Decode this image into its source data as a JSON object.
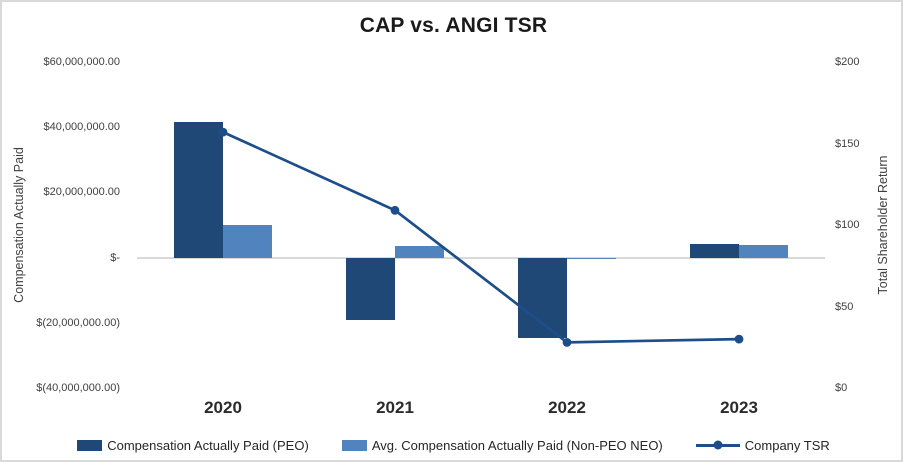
{
  "chart_data": {
    "type": "combo-bar-line",
    "title": "CAP vs. ANGI TSR",
    "categories": [
      "2020",
      "2021",
      "2022",
      "2023"
    ],
    "series": [
      {
        "name": "Compensation Actually Paid (PEO)",
        "chart_type": "bar",
        "axis": "left",
        "color": "#1F4876",
        "values": [
          41700000,
          -19000000,
          -24600000,
          4300000
        ]
      },
      {
        "name": "Avg. Compensation Actually Paid (Non-PEO NEO)",
        "chart_type": "bar",
        "axis": "left",
        "color": "#5183BF",
        "values": [
          9900000,
          3500000,
          -500000,
          4000000
        ]
      },
      {
        "name": "Company TSR",
        "chart_type": "line",
        "axis": "right",
        "color": "#1D4E89",
        "values": [
          157,
          109,
          28,
          30
        ]
      }
    ],
    "left_axis": {
      "title": "Compensation Actually Paid",
      "min": -40000000,
      "max": 60000000,
      "tick_step": 20000000,
      "tick_labels": [
        "$60,000,000.00",
        "$40,000,000.00",
        "$20,000,000.00",
        "$-",
        "$(20,000,000.00)",
        "$(40,000,000.00)"
      ]
    },
    "right_axis": {
      "title": "Total Shareholder Return",
      "min": 0,
      "max": 200,
      "tick_step": 50,
      "tick_labels": [
        "$200",
        "$150",
        "$100",
        "$50",
        "$0"
      ]
    },
    "legend_position": "bottom",
    "gridlines": "zero-line-only",
    "zero_line_color": "#D9D9D9",
    "background_color": "#FFFFFF"
  }
}
